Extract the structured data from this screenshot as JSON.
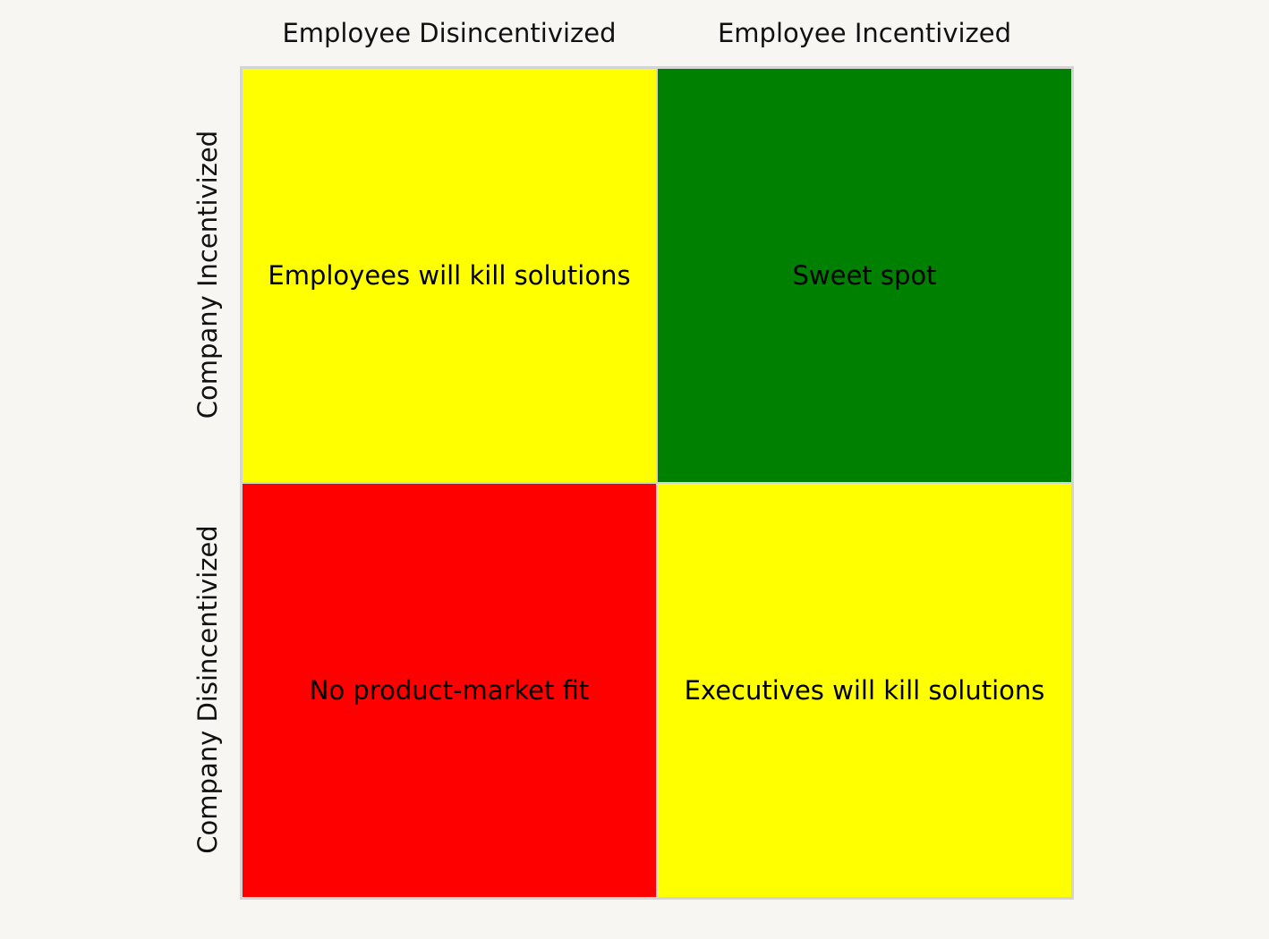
{
  "columns": [
    {
      "label": "Employee Disincentivized"
    },
    {
      "label": "Employee Incentivized"
    }
  ],
  "rows": [
    {
      "label": "Company Incentivized"
    },
    {
      "label": "Company Disincentivized"
    }
  ],
  "cells": [
    {
      "text": "Employees will kill solutions",
      "color": "#ffff00"
    },
    {
      "text": "Sweet spot",
      "color": "#008000"
    },
    {
      "text": "No product-market fit",
      "color": "#ff0000"
    },
    {
      "text": "Executives will kill solutions",
      "color": "#ffff00"
    }
  ],
  "colors": {
    "background": "#f7f6f3",
    "grid_border": "#d4d4d4"
  }
}
